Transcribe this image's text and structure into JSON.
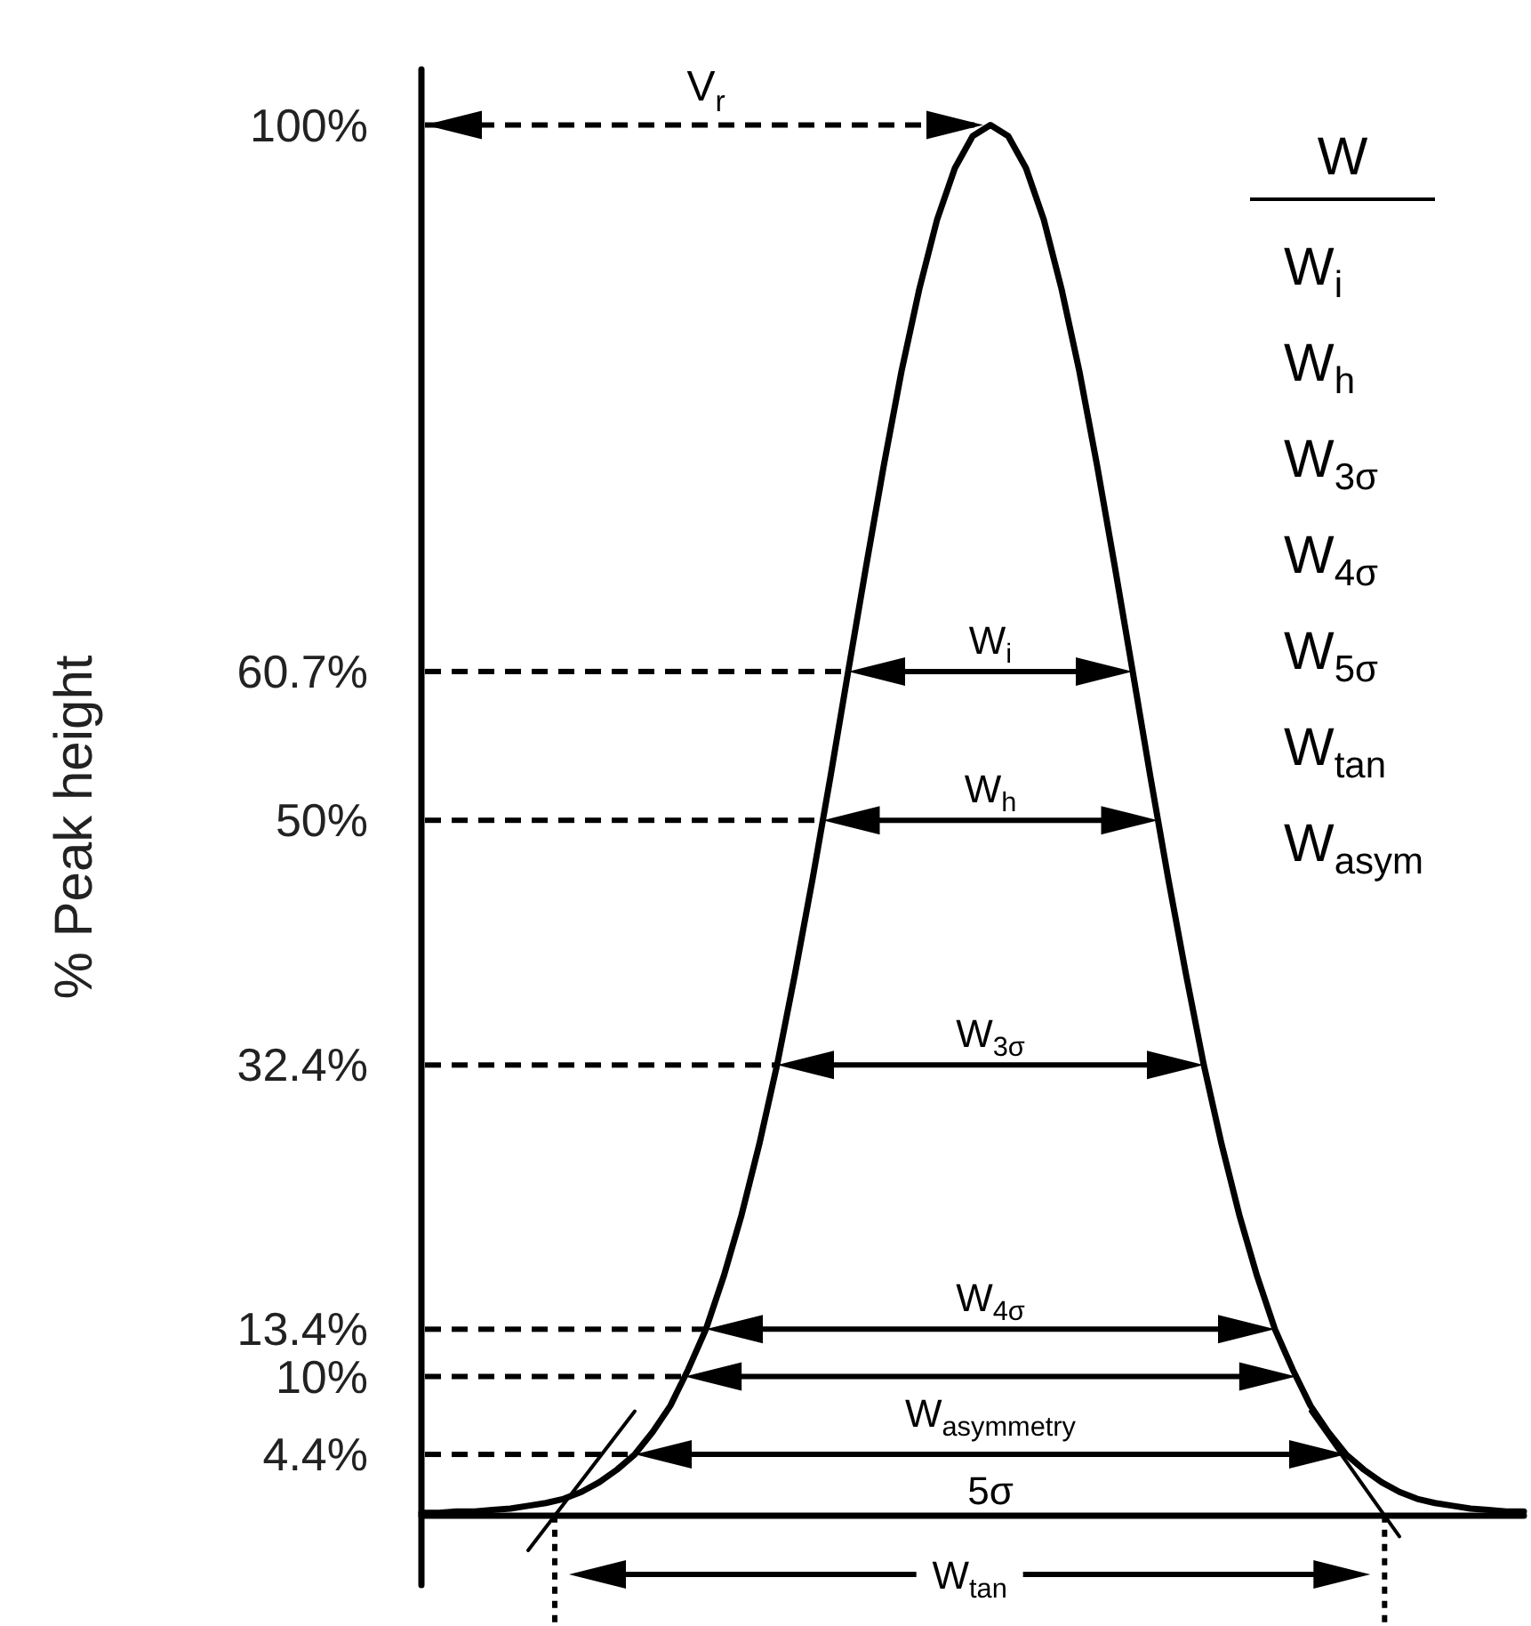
{
  "chart_data": {
    "type": "line",
    "ylabel": "% Peak height",
    "categories": [
      null,
      null,
      null,
      null,
      null,
      null,
      null,
      null,
      null,
      null,
      null,
      null,
      null,
      null,
      null,
      null,
      null,
      null,
      null,
      null,
      null,
      null,
      null,
      null,
      null,
      null,
      null,
      null,
      null,
      null,
      null,
      null,
      null,
      null,
      null,
      null,
      null,
      null,
      null,
      null,
      null,
      null,
      null,
      null,
      null,
      null,
      null,
      null,
      null,
      null,
      null,
      null,
      null,
      null,
      null,
      null,
      null,
      null,
      null,
      null,
      null,
      null,
      null
    ],
    "series": [
      {
        "color": "#000000",
        "values": [
          0.2,
          0.2,
          0.3,
          0.3,
          0.4,
          0.5,
          0.7,
          0.9,
          1.2,
          1.7,
          2.4,
          3.3,
          4.4,
          6.0,
          7.9,
          10.5,
          13.4,
          17.2,
          21.6,
          26.7,
          32.4,
          38.9,
          45.8,
          53.1,
          60.7,
          68.2,
          75.5,
          82.3,
          88.2,
          93.2,
          96.9,
          99.2,
          100,
          99.2,
          96.9,
          93.2,
          88.2,
          82.3,
          75.5,
          68.2,
          60.7,
          53.1,
          45.8,
          38.9,
          32.4,
          26.7,
          21.6,
          17.2,
          13.4,
          10.5,
          7.9,
          6.0,
          4.4,
          3.3,
          2.4,
          1.7,
          1.2,
          0.9,
          0.7,
          0.5,
          0.4,
          0.3,
          0.3
        ]
      },
      {
        "color": "#000000",
        "values": [
          null,
          null,
          null,
          null,
          null,
          null,
          -2.5,
          null,
          null,
          null,
          null,
          null,
          7.5,
          null,
          null,
          null,
          null,
          null,
          null,
          null,
          null,
          null,
          null,
          null,
          null,
          null,
          null,
          null,
          null,
          null,
          null,
          null,
          null,
          null,
          null,
          null,
          null,
          null,
          null,
          null,
          null,
          null,
          null,
          null,
          null,
          null,
          null,
          null,
          null,
          null,
          null,
          null,
          null,
          null,
          null,
          null,
          null,
          null,
          null,
          null,
          null,
          null,
          null
        ]
      },
      {
        "color": "#000000",
        "values": [
          null,
          null,
          null,
          null,
          null,
          null,
          null,
          null,
          null,
          null,
          null,
          null,
          null,
          null,
          null,
          null,
          null,
          null,
          null,
          null,
          null,
          null,
          null,
          null,
          null,
          null,
          null,
          null,
          null,
          null,
          null,
          null,
          null,
          null,
          null,
          null,
          null,
          null,
          null,
          null,
          null,
          null,
          null,
          null,
          null,
          null,
          null,
          null,
          null,
          null,
          7.5,
          null,
          null,
          null,
          null,
          -1.5,
          null,
          null,
          null,
          null,
          null,
          null,
          null
        ]
      }
    ],
    "ylim": [
      -5,
      104
    ],
    "yticks": [
      {
        "value": 100,
        "label": "100%"
      },
      {
        "value": 60.7,
        "label": "60.7%"
      },
      {
        "value": 50,
        "label": "50%"
      },
      {
        "value": 32.4,
        "label": "32.4%"
      },
      {
        "value": 13.4,
        "label": "13.4%"
      },
      {
        "value": 10,
        "label": "10%"
      },
      {
        "value": 4.4,
        "label": "4.4%"
      }
    ],
    "tick_labels": "y",
    "marker": "none",
    "line_style": "solid",
    "annotations": [
      "V$_{r}$",
      "W$_{i}$",
      "W$_{h}$",
      "W$_{3σ}$",
      "W$_{4σ}$",
      "W$_{asymmetry}$",
      "5σ",
      "W$_{tan}$",
      "W",
      "W$_{i}$",
      "W$_{h}$",
      "W$_{3σ}$",
      "W$_{4σ}$",
      "W$_{5σ}$",
      "W$_{tan}$",
      "W$_{asym}$"
    ]
  }
}
